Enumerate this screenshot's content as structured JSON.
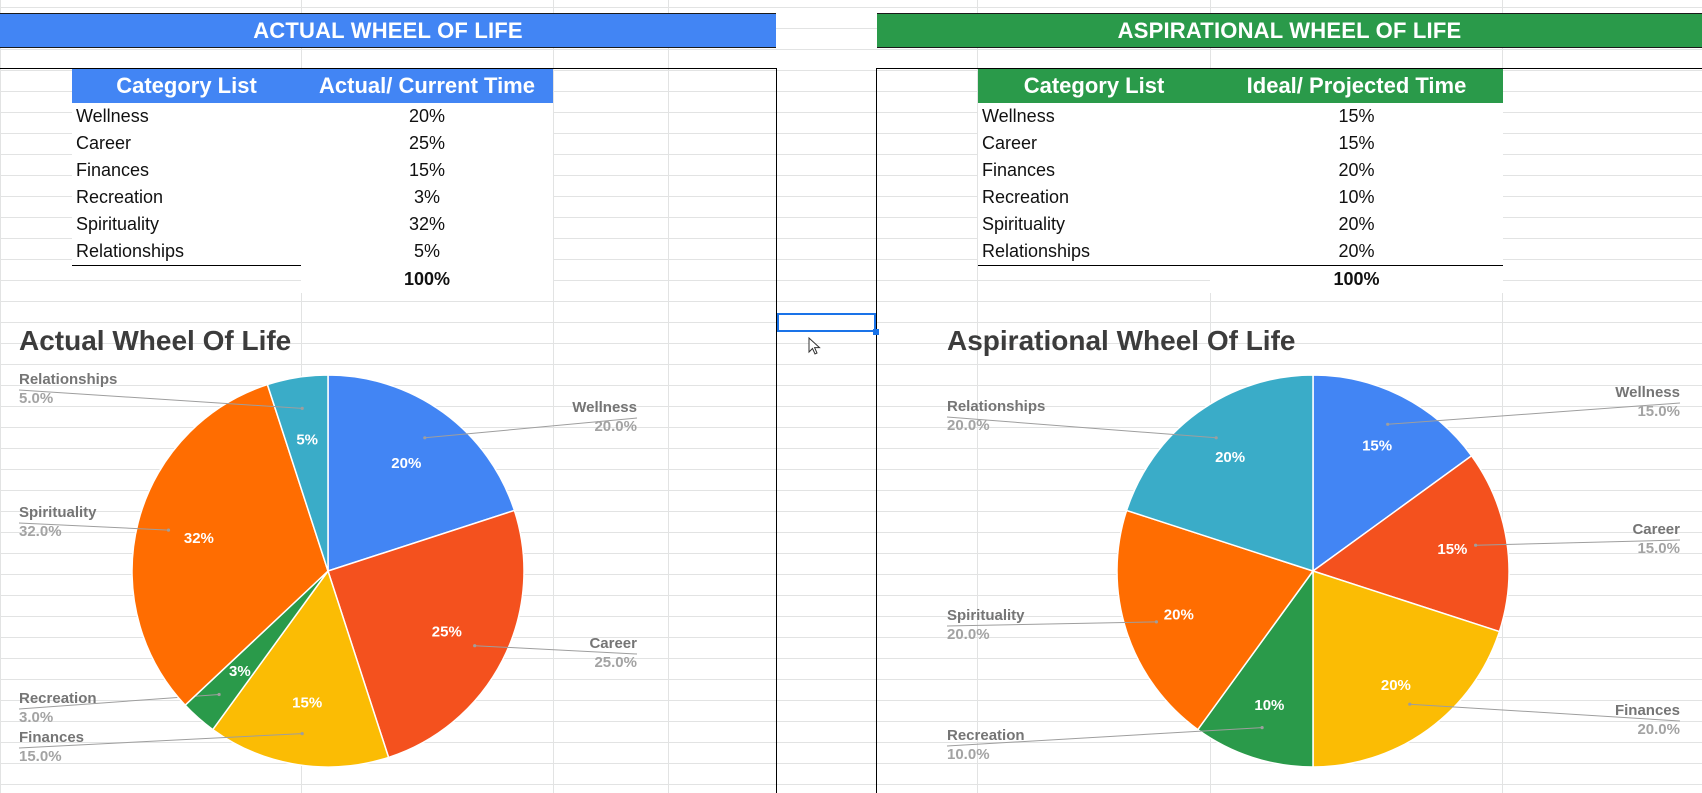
{
  "left": {
    "banner": "ACTUAL WHEEL OF LIFE",
    "banner_color": "#4285f4",
    "header": {
      "category": "Category List",
      "value": "Actual/ Current Time"
    },
    "rows": [
      {
        "category": "Wellness",
        "value": "20%"
      },
      {
        "category": "Career",
        "value": "25%"
      },
      {
        "category": "Finances",
        "value": "15%"
      },
      {
        "category": "Recreation",
        "value": "3%"
      },
      {
        "category": "Spirituality",
        "value": "32%"
      },
      {
        "category": "Relationships",
        "value": "5%"
      }
    ],
    "total": "100%"
  },
  "right": {
    "banner": "ASPIRATIONAL WHEEL OF LIFE",
    "banner_color": "#2a9a4a",
    "header": {
      "category": "Category List",
      "value": "Ideal/ Projected Time"
    },
    "rows": [
      {
        "category": "Wellness",
        "value": "15%"
      },
      {
        "category": "Career",
        "value": "15%"
      },
      {
        "category": "Finances",
        "value": "20%"
      },
      {
        "category": "Recreation",
        "value": "10%"
      },
      {
        "category": "Spirituality",
        "value": "20%"
      },
      {
        "category": "Relationships",
        "value": "20%"
      }
    ],
    "total": "100%"
  },
  "colors": {
    "Wellness": "#4285f4",
    "Career": "#f4511e",
    "Finances": "#fbbc04",
    "Recreation": "#2a9a4a",
    "Spirituality": "#ff6d01",
    "Relationships": "#3aacc8"
  },
  "chart_data": [
    {
      "type": "pie",
      "title": "Actual Wheel Of Life",
      "legend": "none",
      "slices": [
        {
          "name": "Wellness",
          "value": 20,
          "label": "20%",
          "callout_pct": "20.0%"
        },
        {
          "name": "Career",
          "value": 25,
          "label": "25%",
          "callout_pct": "25.0%"
        },
        {
          "name": "Finances",
          "value": 15,
          "label": "15%",
          "callout_pct": "15.0%"
        },
        {
          "name": "Recreation",
          "value": 3,
          "label": "3%",
          "callout_pct": "3.0%"
        },
        {
          "name": "Spirituality",
          "value": 32,
          "label": "32%",
          "callout_pct": "32.0%"
        },
        {
          "name": "Relationships",
          "value": 5,
          "label": "5%",
          "callout_pct": "5.0%"
        }
      ]
    },
    {
      "type": "pie",
      "title": "Aspirational Wheel Of Life",
      "legend": "none",
      "slices": [
        {
          "name": "Wellness",
          "value": 15,
          "label": "15%",
          "callout_pct": "15.0%"
        },
        {
          "name": "Career",
          "value": 15,
          "label": "15%",
          "callout_pct": "15.0%"
        },
        {
          "name": "Finances",
          "value": 20,
          "label": "20%",
          "callout_pct": "20.0%"
        },
        {
          "name": "Recreation",
          "value": 10,
          "label": "10%",
          "callout_pct": "10.0%"
        },
        {
          "name": "Spirituality",
          "value": 20,
          "label": "20%",
          "callout_pct": "20.0%"
        },
        {
          "name": "Relationships",
          "value": 20,
          "label": "20%",
          "callout_pct": "20.0%"
        }
      ]
    }
  ]
}
